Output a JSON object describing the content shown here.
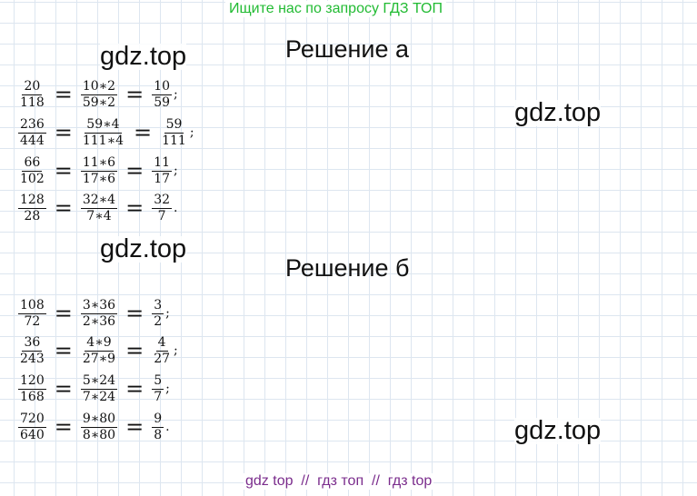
{
  "banner": "Ищите нас по запросу ГДЗ ТОП",
  "watermark": "gdz.top",
  "sections": [
    {
      "title": "Решение а",
      "equations": [
        {
          "a_num": "20",
          "a_den": "118",
          "b_num": "10∗2",
          "b_den": "59∗2",
          "c_num": "10",
          "c_den": "59",
          "punct": ";"
        },
        {
          "a_num": "236",
          "a_den": "444",
          "b_num": "59∗4",
          "b_den": "111∗4",
          "c_num": "59",
          "c_den": "111",
          "punct": ";"
        },
        {
          "a_num": "66",
          "a_den": "102",
          "b_num": "11∗6",
          "b_den": "17∗6",
          "c_num": "11",
          "c_den": "17",
          "punct": ";"
        },
        {
          "a_num": "128",
          "a_den": "28",
          "b_num": "32∗4",
          "b_den": "7∗4",
          "c_num": "32",
          "c_den": "7",
          "punct": "."
        }
      ]
    },
    {
      "title": "Решение б",
      "equations": [
        {
          "a_num": "108",
          "a_den": "72",
          "b_num": "3∗36",
          "b_den": "2∗36",
          "c_num": "3",
          "c_den": "2",
          "punct": ";"
        },
        {
          "a_num": "36",
          "a_den": "243",
          "b_num": "4∗9",
          "b_den": "27∗9",
          "c_num": "4",
          "c_den": "27",
          "punct": ";"
        },
        {
          "a_num": "120",
          "a_den": "168",
          "b_num": "5∗24",
          "b_den": "7∗24",
          "c_num": "5",
          "c_den": "7",
          "punct": ";"
        },
        {
          "a_num": "720",
          "a_den": "640",
          "b_num": "9∗80",
          "b_den": "8∗80",
          "c_num": "9",
          "c_den": "8",
          "punct": "."
        }
      ]
    }
  ],
  "footer": "gdz top  //  гдз топ  //  гдз top"
}
